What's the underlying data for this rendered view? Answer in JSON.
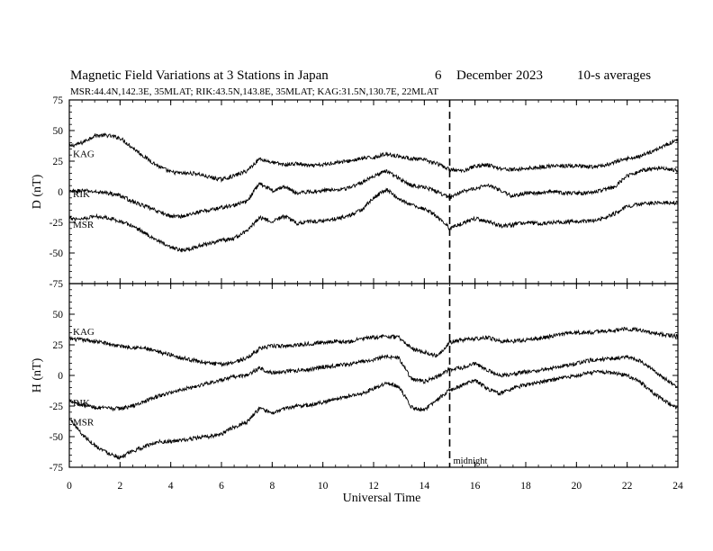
{
  "chart_data": {
    "type": "line",
    "title": "Magnetic Field Variations at 3 Stations in Japan",
    "date_day": "6",
    "date_month": "December",
    "date_year": "2023",
    "averaging": "10-s averages",
    "subtitle": "MSR:44.4N,142.3E, 35MLAT;  RIK:43.5N,143.8E, 35MLAT;  KAG:31.5N,130.7E, 22MLAT",
    "xlabel": "Universal Time",
    "xlim": [
      0,
      24
    ],
    "x_ticks": [
      "0",
      "2",
      "4",
      "6",
      "8",
      "10",
      "12",
      "14",
      "16",
      "18",
      "20",
      "22",
      "24"
    ],
    "midnight_x": 15,
    "midnight_label": "midnight",
    "panels": [
      {
        "ylabel": "D (nT)",
        "ylim": [
          -75,
          75
        ],
        "y_ticks": [
          "75",
          "50",
          "25",
          "0",
          "-25",
          "-50",
          "-75"
        ],
        "series": [
          {
            "name": "KAG",
            "x": [
              0,
              0.5,
              1,
              1.5,
              2,
              2.5,
              3,
              3.5,
              4,
              4.5,
              5,
              5.5,
              6,
              6.5,
              7,
              7.5,
              8,
              8.5,
              9,
              9.5,
              10,
              10.5,
              11,
              11.5,
              12,
              12.5,
              13,
              13.5,
              14,
              14.5,
              15,
              15.5,
              16,
              16.5,
              17,
              17.5,
              18,
              18.5,
              19,
              19.5,
              20,
              20.5,
              21,
              21.5,
              22,
              22.5,
              23,
              23.5,
              24
            ],
            "values": [
              37,
              40,
              46,
              46,
              44,
              36,
              28,
              21,
              16,
              15,
              15,
              12,
              10,
              13,
              17,
              27,
              24,
              22,
              23,
              21,
              22,
              24,
              25,
              27,
              28,
              31,
              29,
              27,
              26,
              23,
              18,
              17,
              21,
              22,
              19,
              18,
              19,
              20,
              21,
              21,
              21,
              20,
              21,
              24,
              27,
              29,
              33,
              38,
              43
            ]
          },
          {
            "name": "RIK",
            "x": [
              0,
              0.5,
              1,
              1.5,
              2,
              2.5,
              3,
              3.5,
              4,
              4.5,
              5,
              5.5,
              6,
              6.5,
              7,
              7.5,
              8,
              8.5,
              9,
              9.5,
              10,
              10.5,
              11,
              11.5,
              12,
              12.5,
              13,
              13.5,
              14,
              14.5,
              15,
              15.5,
              16,
              16.5,
              17,
              17.5,
              18,
              18.5,
              19,
              19.5,
              20,
              20.5,
              21,
              21.5,
              22,
              22.5,
              23,
              23.5,
              24
            ],
            "values": [
              0,
              1,
              0,
              -1,
              -3,
              -8,
              -12,
              -16,
              -20,
              -20,
              -17,
              -15,
              -13,
              -11,
              -8,
              7,
              1,
              4,
              -1,
              0,
              1,
              2,
              3,
              7,
              13,
              17,
              11,
              5,
              4,
              0,
              -5,
              1,
              2,
              6,
              1,
              -4,
              -1,
              -1,
              0,
              -1,
              -1,
              -1,
              1,
              4,
              13,
              17,
              19,
              19,
              17
            ]
          },
          {
            "name": "MSR",
            "x": [
              0,
              0.5,
              1,
              1.5,
              2,
              2.5,
              3,
              3.5,
              4,
              4.5,
              5,
              5.5,
              6,
              6.5,
              7,
              7.5,
              8,
              8.5,
              9,
              9.5,
              10,
              10.5,
              11,
              11.5,
              12,
              12.5,
              13,
              13.5,
              14,
              14.5,
              15,
              15.5,
              16,
              16.5,
              17,
              17.5,
              18,
              18.5,
              19,
              19.5,
              20,
              20.5,
              21,
              21.5,
              22,
              22.5,
              23,
              23.5,
              24
            ],
            "values": [
              -22,
              -22,
              -20,
              -21,
              -24,
              -28,
              -34,
              -40,
              -46,
              -48,
              -45,
              -42,
              -40,
              -38,
              -32,
              -21,
              -24,
              -20,
              -26,
              -24,
              -24,
              -22,
              -20,
              -15,
              -5,
              2,
              -6,
              -11,
              -14,
              -20,
              -30,
              -26,
              -22,
              -24,
              -28,
              -27,
              -25,
              -26,
              -25,
              -25,
              -24,
              -24,
              -22,
              -18,
              -12,
              -10,
              -9,
              -9,
              -9
            ]
          }
        ]
      },
      {
        "ylabel": "H (nT)",
        "ylim": [
          -75,
          75
        ],
        "y_ticks": [
          "75",
          "50",
          "25",
          "0",
          "-25",
          "-50",
          "-75"
        ],
        "series": [
          {
            "name": "KAG",
            "x": [
              0,
              0.5,
              1,
              1.5,
              2,
              2.5,
              3,
              3.5,
              4,
              4.5,
              5,
              5.5,
              6,
              6.5,
              7,
              7.5,
              8,
              8.5,
              9,
              9.5,
              10,
              10.5,
              11,
              11.5,
              12,
              12.5,
              13,
              13.5,
              14,
              14.5,
              15,
              15.5,
              16,
              16.5,
              17,
              17.5,
              18,
              18.5,
              19,
              19.5,
              20,
              20.5,
              21,
              21.5,
              22,
              22.5,
              23,
              23.5,
              24
            ],
            "values": [
              30,
              29,
              28,
              26,
              24,
              23,
              22,
              19,
              17,
              14,
              12,
              10,
              9,
              11,
              14,
              22,
              24,
              24,
              25,
              26,
              27,
              28,
              27,
              30,
              31,
              32,
              31,
              22,
              19,
              16,
              27,
              29,
              30,
              31,
              28,
              28,
              29,
              30,
              32,
              34,
              35,
              35,
              36,
              37,
              38,
              37,
              35,
              33,
              32
            ]
          },
          {
            "name": "RIK",
            "x": [
              0,
              0.5,
              1,
              1.5,
              2,
              2.5,
              3,
              3.5,
              4,
              4.5,
              5,
              5.5,
              6,
              6.5,
              7,
              7.5,
              8,
              8.5,
              9,
              9.5,
              10,
              10.5,
              11,
              11.5,
              12,
              12.5,
              13,
              13.5,
              14,
              14.5,
              15,
              15.5,
              16,
              16.5,
              17,
              17.5,
              18,
              18.5,
              19,
              19.5,
              20,
              20.5,
              21,
              21.5,
              22,
              22.5,
              23,
              23.5,
              24
            ],
            "values": [
              -20,
              -24,
              -26,
              -27,
              -27,
              -25,
              -21,
              -17,
              -14,
              -11,
              -9,
              -6,
              -4,
              -1,
              0,
              6,
              2,
              3,
              4,
              5,
              7,
              8,
              9,
              11,
              13,
              16,
              14,
              -3,
              -5,
              -1,
              5,
              6,
              10,
              4,
              0,
              1,
              3,
              4,
              6,
              8,
              10,
              12,
              13,
              14,
              15,
              12,
              5,
              -3,
              -9
            ]
          },
          {
            "name": "MSR",
            "x": [
              0,
              0.5,
              1,
              1.5,
              2,
              2.5,
              3,
              3.5,
              4,
              4.5,
              5,
              5.5,
              6,
              6.5,
              7,
              7.5,
              8,
              8.5,
              9,
              9.5,
              10,
              10.5,
              11,
              11.5,
              12,
              12.5,
              13,
              13.5,
              14,
              14.5,
              15,
              15.5,
              16,
              16.5,
              17,
              17.5,
              18,
              18.5,
              19,
              19.5,
              20,
              20.5,
              21,
              21.5,
              22,
              22.5,
              23,
              23.5,
              24
            ],
            "values": [
              -35,
              -48,
              -57,
              -63,
              -67,
              -62,
              -58,
              -54,
              -54,
              -53,
              -51,
              -50,
              -48,
              -42,
              -38,
              -27,
              -31,
              -27,
              -25,
              -24,
              -22,
              -19,
              -17,
              -15,
              -11,
              -6,
              -9,
              -26,
              -28,
              -20,
              -12,
              -8,
              -4,
              -11,
              -15,
              -10,
              -8,
              -6,
              -4,
              -2,
              0,
              2,
              3,
              2,
              0,
              -5,
              -14,
              -21,
              -27
            ]
          }
        ]
      }
    ]
  }
}
